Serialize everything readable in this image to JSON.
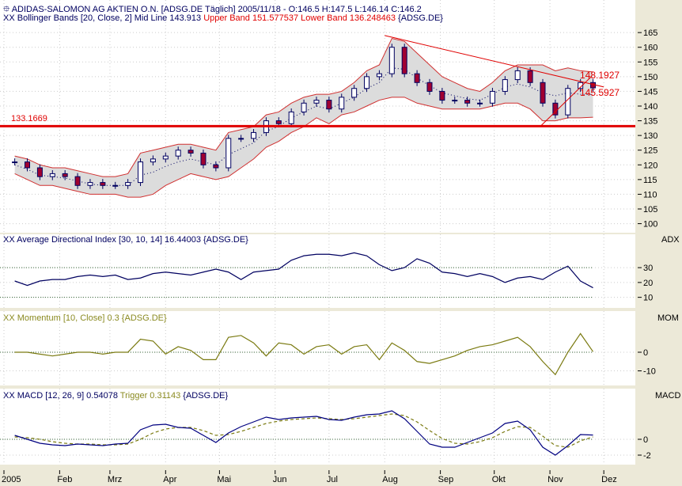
{
  "colors": {
    "price": "#000060",
    "down": "#a00030",
    "band": "#d03030",
    "band_fill": "#dcdcdc",
    "adx": "#000060",
    "momentum": "#7a7a10",
    "macd": "#000080",
    "trigger": "#7a7a10",
    "support": "#e00000",
    "axis_bg": "#ece9d8"
  },
  "header": {
    "title": "ADIDAS-SALOMON AG AKTIEN O.N. [ADSG.DE  Täglich] 2005/11/18 - O:146.5 H:147.5 L:146.14 C:146.2",
    "bb_prefix": "Bollinger Bands [20, Close, 2] Mid Line 143.913",
    "bb_upper": "Upper Band 151.577537",
    "bb_lower": "Lower Band 136.248463",
    "bb_suffix": "{ADSG.DE}"
  },
  "chart_data": [
    {
      "type": "candlestick",
      "title": "ADIDAS-SALOMON AG AKTIEN O.N. [ADSG.DE  Täglich]",
      "dates_start": "2005-01-07",
      "step_days": 7,
      "close": [
        121,
        119,
        116,
        117,
        116,
        113,
        114,
        113,
        113,
        114,
        121,
        122,
        123,
        125,
        124,
        120,
        119,
        129,
        129,
        131,
        135,
        134,
        138,
        141,
        142,
        139,
        143,
        146,
        150,
        151,
        160,
        151,
        148,
        145,
        142,
        142,
        141,
        141,
        145,
        149,
        152,
        148,
        141,
        137,
        146,
        148,
        146.2
      ],
      "upper": [
        123,
        122,
        120,
        119,
        119,
        118,
        117,
        116,
        116,
        117,
        124,
        125,
        126,
        127,
        127,
        126,
        125,
        131,
        132,
        133,
        137,
        138,
        141,
        143,
        144,
        144,
        145,
        148,
        152,
        154,
        163,
        162,
        158,
        154,
        150,
        148,
        146,
        145,
        148,
        152,
        154,
        154,
        154,
        152,
        153,
        152,
        151.6
      ],
      "lower": [
        117,
        115,
        113,
        113,
        112,
        111,
        110,
        110,
        110,
        109,
        109,
        110,
        113,
        115,
        117,
        116,
        115,
        116,
        119,
        122,
        126,
        128,
        131,
        133,
        136,
        134,
        137,
        138,
        140,
        142,
        143,
        143,
        141,
        140,
        139,
        139,
        139,
        139,
        140,
        141,
        141,
        139,
        135,
        135,
        136,
        136,
        136.2
      ],
      "ylim": [
        98,
        168
      ],
      "yticks": [
        100,
        105,
        110,
        115,
        120,
        125,
        130,
        135,
        140,
        145,
        150,
        155,
        160,
        165
      ],
      "support_level": 133.1669,
      "support_label": "133.1669",
      "trendline_down": {
        "from": [
          "2005-08-01",
          164
        ],
        "to": [
          "2005-12-01",
          146.5
        ]
      },
      "trendline_up": {
        "from": [
          "2005-10-27",
          133.3
        ],
        "to": [
          "2005-11-24",
          150
        ]
      },
      "trend_labels": [
        "148.1927",
        "145.5927"
      ]
    },
    {
      "type": "line",
      "title": "Average Directional Index [30, 10, 14] 16.44003 {ADSG.DE}",
      "axis_label": "ADX",
      "values": [
        21,
        18,
        21,
        22,
        22,
        24,
        25,
        24,
        25,
        22,
        23,
        26,
        27,
        26,
        25,
        27,
        29,
        27,
        22,
        27,
        28,
        29,
        35,
        38,
        39,
        39,
        38,
        40,
        38,
        32,
        28,
        30,
        36,
        33,
        27,
        26,
        24,
        26,
        24,
        20,
        23,
        24,
        22,
        27,
        31,
        21,
        16.44
      ],
      "ylim": [
        5,
        45
      ],
      "yticks": [
        10,
        20,
        30
      ],
      "ref_lines": [
        10,
        30
      ]
    },
    {
      "type": "line",
      "title": "Momentum [10, Close] 0.3 {ADSG.DE}",
      "axis_label": "MOM",
      "values": [
        0,
        0,
        -1,
        -2,
        -1,
        0,
        0,
        -1,
        0,
        0,
        7,
        6,
        -1,
        3,
        1,
        -4,
        -4,
        8,
        9,
        5,
        -2,
        5,
        4,
        -1,
        3,
        4,
        -1,
        3,
        4,
        -4,
        5,
        1,
        -5,
        -6,
        -4,
        -2,
        1,
        3,
        4,
        6,
        8,
        3,
        -5,
        -12,
        0,
        10,
        0.3
      ],
      "ylim": [
        -17,
        17
      ],
      "yticks": [
        0,
        -10
      ],
      "ref_lines": [
        0
      ]
    },
    {
      "type": "line",
      "title": "MACD [12, 26, 9] 0.54078",
      "trigger_label": "Trigger 0.31143",
      "suffix": "{ADSG.DE}",
      "axis_label": "MACD",
      "macd": [
        0.5,
        0,
        -0.5,
        -0.7,
        -0.8,
        -0.6,
        -0.7,
        -0.8,
        -0.6,
        -0.5,
        1.2,
        1.8,
        1.9,
        1.5,
        1.4,
        0.5,
        -0.4,
        0.8,
        1.6,
        2.2,
        2.8,
        2.5,
        2.7,
        2.8,
        2.9,
        2.5,
        2.4,
        2.8,
        3.1,
        3.2,
        3.6,
        2.6,
        1.0,
        -0.6,
        -1.0,
        -1.0,
        -0.4,
        0.2,
        0.8,
        2.0,
        2.3,
        1.2,
        -1.0,
        -2.0,
        -0.8,
        0.6,
        0.54
      ],
      "trigger": [
        0.3,
        0.2,
        0,
        -0.3,
        -0.5,
        -0.6,
        -0.6,
        -0.7,
        -0.7,
        -0.6,
        0,
        0.8,
        1.3,
        1.5,
        1.5,
        1.1,
        0.5,
        0.6,
        1.0,
        1.5,
        2.0,
        2.3,
        2.5,
        2.6,
        2.7,
        2.6,
        2.5,
        2.6,
        2.8,
        3.0,
        3.2,
        3.0,
        2.2,
        1.1,
        0.1,
        -0.5,
        -0.6,
        -0.3,
        0.2,
        1.0,
        1.6,
        1.5,
        0.4,
        -0.8,
        -1.0,
        -0.2,
        0.31
      ],
      "ylim": [
        -3,
        5
      ],
      "yticks": [
        0,
        -2
      ],
      "ref_lines": [
        0
      ]
    }
  ],
  "xaxis": {
    "labels": [
      "2005",
      "Feb",
      "Mrz",
      "Apr",
      "Mai",
      "Jun",
      "Jul",
      "Aug",
      "Sep",
      "Okt",
      "Nov",
      "Dez"
    ],
    "dates": [
      "2005-01-01",
      "2005-02-01",
      "2005-03-01",
      "2005-04-01",
      "2005-05-01",
      "2005-06-01",
      "2005-07-01",
      "2005-08-01",
      "2005-09-01",
      "2005-10-01",
      "2005-11-01",
      "2005-12-01"
    ]
  }
}
